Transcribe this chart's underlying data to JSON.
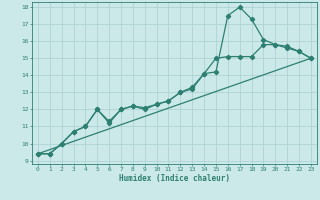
{
  "xlabel": "Humidex (Indice chaleur)",
  "xlim": [
    -0.5,
    23.5
  ],
  "ylim": [
    8.8,
    18.3
  ],
  "yticks": [
    9,
    10,
    11,
    12,
    13,
    14,
    15,
    16,
    17,
    18
  ],
  "xticks": [
    0,
    1,
    2,
    3,
    4,
    5,
    6,
    7,
    8,
    9,
    10,
    11,
    12,
    13,
    14,
    15,
    16,
    17,
    18,
    19,
    20,
    21,
    22,
    23
  ],
  "line_color": "#2d7f72",
  "bg_color": "#cce9e9",
  "grid_color": "#aacfcf",
  "line1_x": [
    0,
    1,
    2,
    3,
    4,
    5,
    6,
    7,
    8,
    9,
    10,
    11,
    12,
    13,
    14,
    15,
    16,
    17,
    18,
    19,
    20,
    21,
    22,
    23
  ],
  "line1_y": [
    9.4,
    9.4,
    10.0,
    10.7,
    11.0,
    12.0,
    11.2,
    12.0,
    12.2,
    12.0,
    12.3,
    12.5,
    13.0,
    13.3,
    14.1,
    14.2,
    17.5,
    18.0,
    17.3,
    16.1,
    15.8,
    15.7,
    15.4,
    15.0
  ],
  "line2_x": [
    0,
    1,
    2,
    3,
    4,
    5,
    6,
    7,
    8,
    9,
    10,
    11,
    12,
    13,
    14,
    15,
    16,
    17,
    18,
    19,
    20,
    21,
    22,
    23
  ],
  "line2_y": [
    9.4,
    9.4,
    10.0,
    10.7,
    11.0,
    12.0,
    11.3,
    12.0,
    12.2,
    12.1,
    12.3,
    12.5,
    13.0,
    13.2,
    14.1,
    15.0,
    15.1,
    15.1,
    15.1,
    15.8,
    15.8,
    15.6,
    15.4,
    15.0
  ],
  "line3_x": [
    0,
    23
  ],
  "line3_y": [
    9.4,
    15.0
  ],
  "marker": "D",
  "markersize": 2.2,
  "linewidth": 0.9
}
